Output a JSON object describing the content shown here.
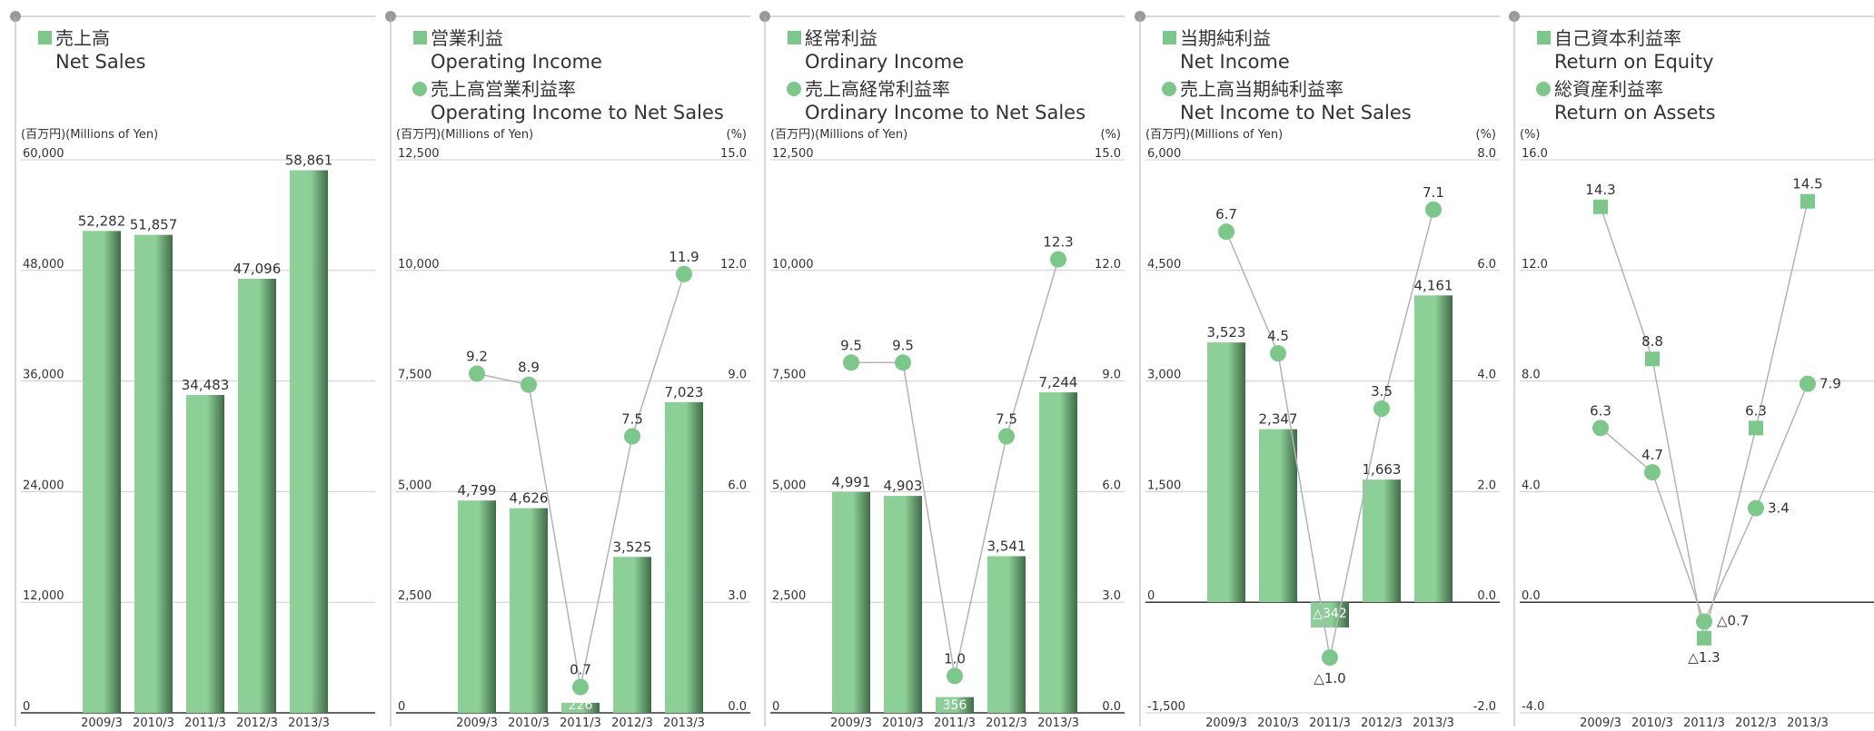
{
  "colors": {
    "bar_light": "#8ccf97",
    "bar_dark": "#3f6b47",
    "dot": "#7cc88a",
    "square": "#7cc88a",
    "line": "#b3b3b3",
    "gridline": "#cccccc",
    "axis": "#333333"
  },
  "chart_data": [
    {
      "type": "bar",
      "title_jp": "売上高",
      "title_en": "Net Sales",
      "left_unit": "(百万円)(Millions of Yen)",
      "categories": [
        "2009/3",
        "2010/3",
        "2011/3",
        "2012/3",
        "2013/3"
      ],
      "values": [
        52282,
        51857,
        34483,
        47096,
        58861
      ],
      "value_labels": [
        "52,282",
        "51,857",
        "34,483",
        "47,096",
        "58,861"
      ],
      "ylim": [
        0,
        60000
      ],
      "yticks": [
        0,
        12000,
        24000,
        36000,
        48000,
        60000
      ],
      "ytick_labels": [
        "0",
        "12,000",
        "24,000",
        "36,000",
        "48,000",
        "60,000"
      ],
      "grid": true
    },
    {
      "type": "bar",
      "title_jp": "営業利益",
      "title_en": "Operating Income",
      "title2_jp": "売上高営業利益率",
      "title2_en": "Operating Income to Net Sales",
      "left_unit": "(百万円)(Millions of Yen)",
      "right_unit": "(%)",
      "categories": [
        "2009/3",
        "2010/3",
        "2011/3",
        "2012/3",
        "2013/3"
      ],
      "values": [
        4799,
        4626,
        226,
        3525,
        7023
      ],
      "value_labels": [
        "4,799",
        "4,626",
        "226",
        "3,525",
        "7,023"
      ],
      "ylim": [
        0,
        12500
      ],
      "yticks": [
        0,
        2500,
        5000,
        7500,
        10000,
        12500
      ],
      "ytick_labels": [
        "0",
        "2,500",
        "5,000",
        "7,500",
        "10,000",
        "12,500"
      ],
      "line_values": [
        9.2,
        8.9,
        0.7,
        7.5,
        11.9
      ],
      "line_labels": [
        "9.2",
        "8.9",
        "0.7",
        "7.5",
        "11.9"
      ],
      "y2lim": [
        0,
        15
      ],
      "y2ticks": [
        0,
        3,
        6,
        9,
        12,
        15
      ],
      "y2tick_labels": [
        "0.0",
        "3.0",
        "6.0",
        "9.0",
        "12.0",
        "15.0"
      ],
      "grid": true
    },
    {
      "type": "bar",
      "title_jp": "経常利益",
      "title_en": "Ordinary Income",
      "title2_jp": "売上高経常利益率",
      "title2_en": "Ordinary Income to Net Sales",
      "left_unit": "(百万円)(Millions of Yen)",
      "right_unit": "(%)",
      "categories": [
        "2009/3",
        "2010/3",
        "2011/3",
        "2012/3",
        "2013/3"
      ],
      "values": [
        4991,
        4903,
        356,
        3541,
        7244
      ],
      "value_labels": [
        "4,991",
        "4,903",
        "356",
        "3,541",
        "7,244"
      ],
      "ylim": [
        0,
        12500
      ],
      "yticks": [
        0,
        2500,
        5000,
        7500,
        10000,
        12500
      ],
      "ytick_labels": [
        "0",
        "2,500",
        "5,000",
        "7,500",
        "10,000",
        "12,500"
      ],
      "line_values": [
        9.5,
        9.5,
        1.0,
        7.5,
        12.3
      ],
      "line_labels": [
        "9.5",
        "9.5",
        "1.0",
        "7.5",
        "12.3"
      ],
      "y2lim": [
        0,
        15
      ],
      "y2ticks": [
        0,
        3,
        6,
        9,
        12,
        15
      ],
      "y2tick_labels": [
        "0.0",
        "3.0",
        "6.0",
        "9.0",
        "12.0",
        "15.0"
      ],
      "grid": true
    },
    {
      "type": "bar",
      "title_jp": "当期純利益",
      "title_en": "Net Income",
      "title2_jp": "売上高当期純利益率",
      "title2_en": "Net Income to Net Sales",
      "left_unit": "(百万円)(Millions of Yen)",
      "right_unit": "(%)",
      "categories": [
        "2009/3",
        "2010/3",
        "2011/3",
        "2012/3",
        "2013/3"
      ],
      "values": [
        3523,
        2347,
        -342,
        1663,
        4161
      ],
      "value_labels": [
        "3,523",
        "2,347",
        "△342",
        "1,663",
        "4,161"
      ],
      "ylim": [
        -1500,
        6000
      ],
      "yticks": [
        -1500,
        0,
        1500,
        3000,
        4500,
        6000
      ],
      "ytick_labels": [
        "-1,500",
        "0",
        "1,500",
        "3,000",
        "4,500",
        "6,000"
      ],
      "line_values": [
        6.7,
        4.5,
        -1.0,
        3.5,
        7.1
      ],
      "line_labels": [
        "6.7",
        "4.5",
        "△1.0",
        "3.5",
        "7.1"
      ],
      "y2lim": [
        -2,
        8
      ],
      "y2ticks": [
        -2,
        0,
        2,
        4,
        6,
        8
      ],
      "y2tick_labels": [
        "-2.0",
        "0.0",
        "2.0",
        "4.0",
        "6.0",
        "8.0"
      ],
      "grid": true
    },
    {
      "type": "line",
      "title_jp": "自己資本利益率",
      "title_en": "Return on Equity",
      "title2_jp": "総資産利益率",
      "title2_en": "Return on Assets",
      "left_unit": "(%)",
      "categories": [
        "2009/3",
        "2010/3",
        "2011/3",
        "2012/3",
        "2013/3"
      ],
      "ylim": [
        -4,
        16
      ],
      "yticks": [
        -4,
        0,
        4,
        8,
        12,
        16
      ],
      "ytick_labels": [
        "-4.0",
        "0.0",
        "4.0",
        "8.0",
        "12.0",
        "16.0"
      ],
      "series": [
        {
          "name": "自己資本利益率 Return on Equity",
          "marker": "square",
          "values": [
            14.3,
            8.8,
            -1.3,
            6.3,
            14.5
          ],
          "labels": [
            "14.3",
            "8.8",
            "△1.3",
            "6.3",
            "14.5"
          ]
        },
        {
          "name": "総資産利益率 Return on Assets",
          "marker": "circle",
          "values": [
            6.3,
            4.7,
            -0.7,
            3.4,
            7.9
          ],
          "labels": [
            "6.3",
            "4.7",
            "△0.7",
            "3.4",
            "7.9"
          ]
        }
      ],
      "grid": true
    }
  ]
}
